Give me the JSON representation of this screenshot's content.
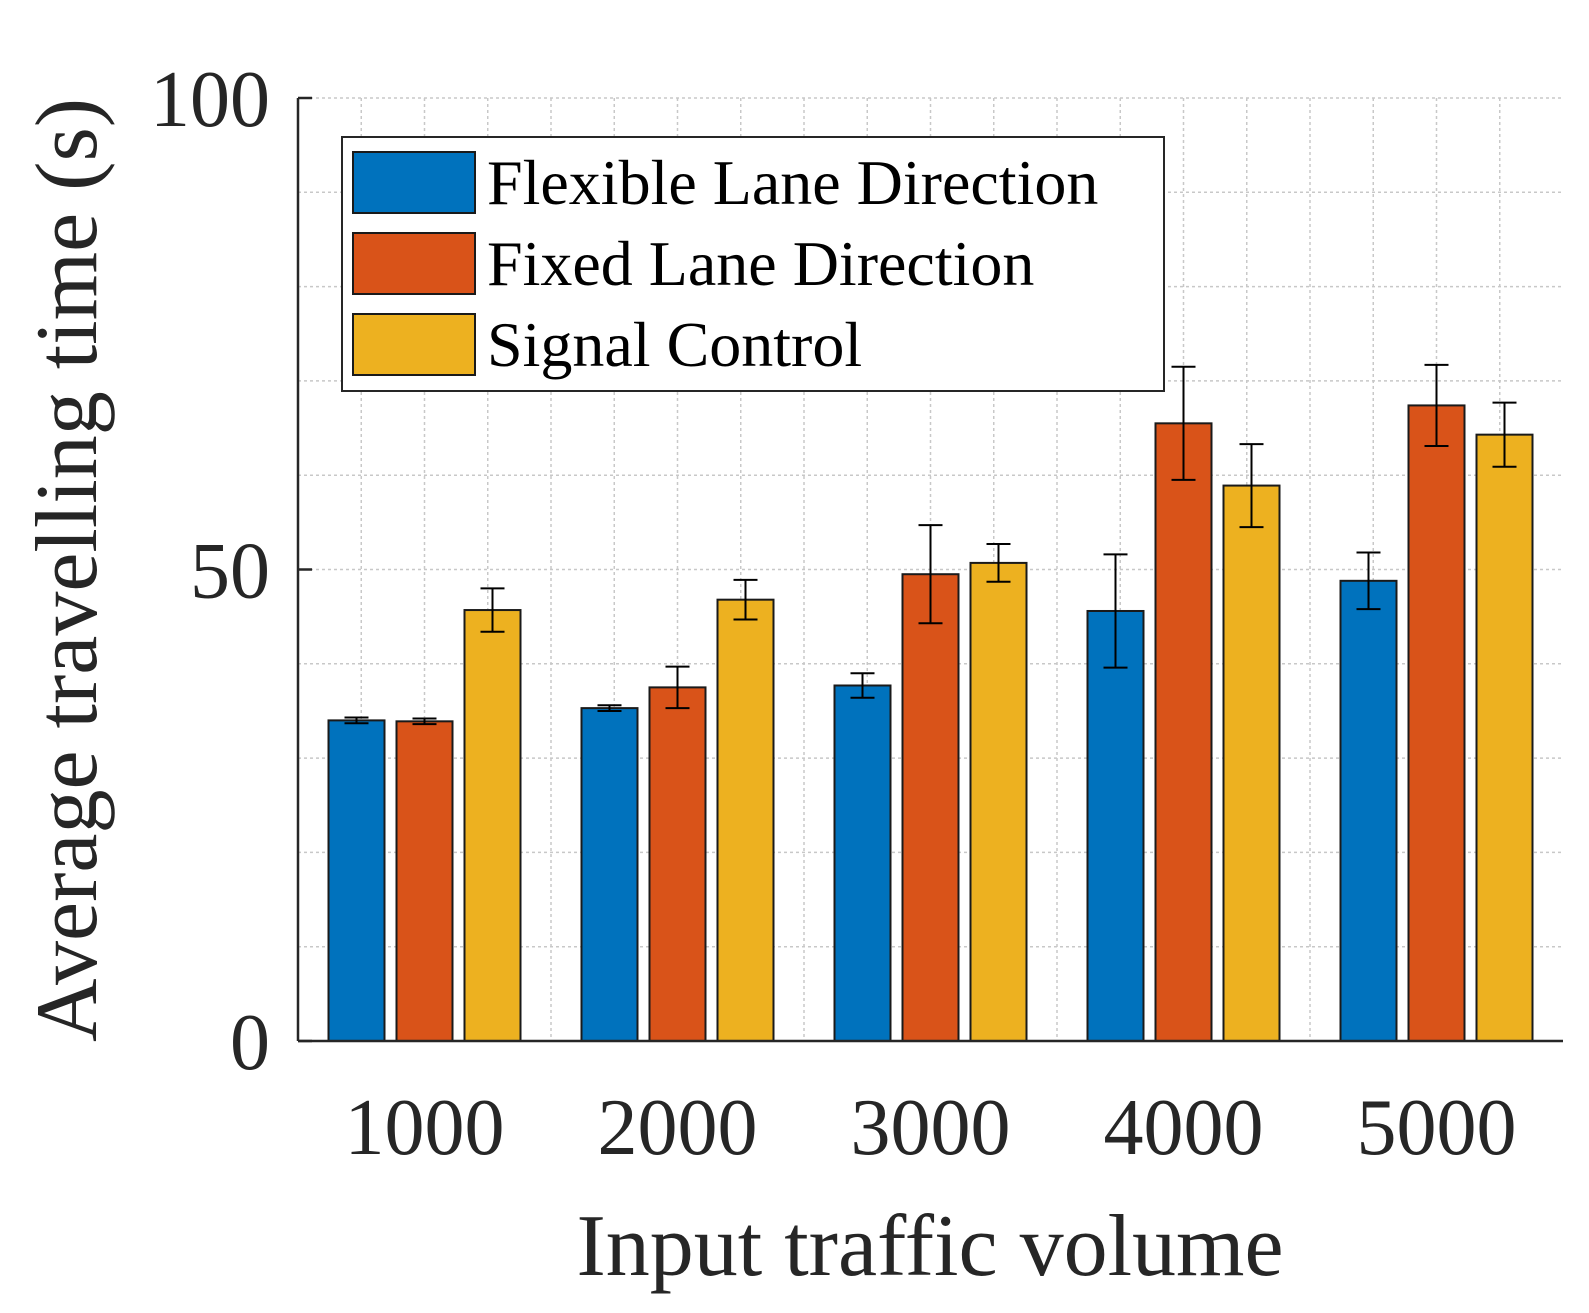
{
  "chart_data": {
    "type": "bar",
    "xlabel": "Input traffic volume",
    "ylabel": "Average travelling time (s)",
    "categories": [
      "1000",
      "2000",
      "3000",
      "4000",
      "5000"
    ],
    "ylim": [
      0,
      100
    ],
    "yticks": [
      0,
      50,
      100
    ],
    "ytick_labels": [
      "0",
      "50",
      "100"
    ],
    "minor_grid_step": 10,
    "grid": true,
    "legend_position": "top-left",
    "series": [
      {
        "name": "Flexible Lane Direction",
        "color": "#0072BD",
        "values": [
          34.0,
          35.3,
          37.7,
          45.6,
          48.8
        ],
        "error": [
          0.3,
          0.3,
          1.3,
          6.0,
          3.0
        ]
      },
      {
        "name": "Fixed Lane Direction",
        "color": "#D95319",
        "values": [
          33.9,
          37.5,
          49.5,
          65.5,
          67.4
        ],
        "error": [
          0.3,
          2.2,
          5.2,
          6.0,
          4.3
        ]
      },
      {
        "name": "Signal Control",
        "color": "#EDB120",
        "values": [
          45.7,
          46.8,
          50.7,
          58.9,
          64.3
        ],
        "error": [
          2.3,
          2.1,
          2.0,
          4.4,
          3.4
        ]
      }
    ]
  }
}
